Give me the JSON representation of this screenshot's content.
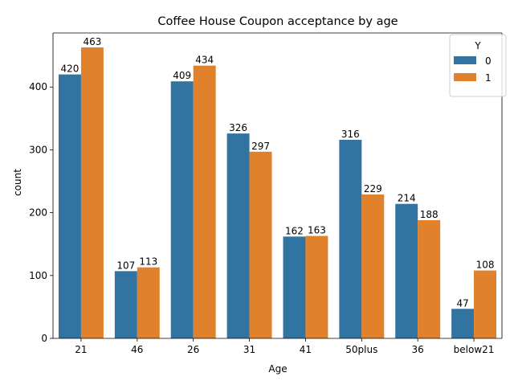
{
  "chart_data": {
    "type": "bar",
    "title": "Coffee House Coupon acceptance by age",
    "xlabel": "Age",
    "ylabel": "count",
    "categories": [
      "21",
      "46",
      "26",
      "31",
      "41",
      "50plus",
      "36",
      "below21"
    ],
    "series": [
      {
        "name": "0",
        "color": "#3274a1",
        "values": [
          420,
          107,
          409,
          326,
          162,
          316,
          214,
          47
        ]
      },
      {
        "name": "1",
        "color": "#e1812c",
        "values": [
          463,
          113,
          434,
          297,
          163,
          229,
          188,
          108
        ]
      }
    ],
    "ylim": [
      0,
      486
    ],
    "yticks": [
      0,
      100,
      200,
      300,
      400
    ],
    "grid": false,
    "legend": {
      "title": "Y",
      "placement": "top-right"
    }
  }
}
